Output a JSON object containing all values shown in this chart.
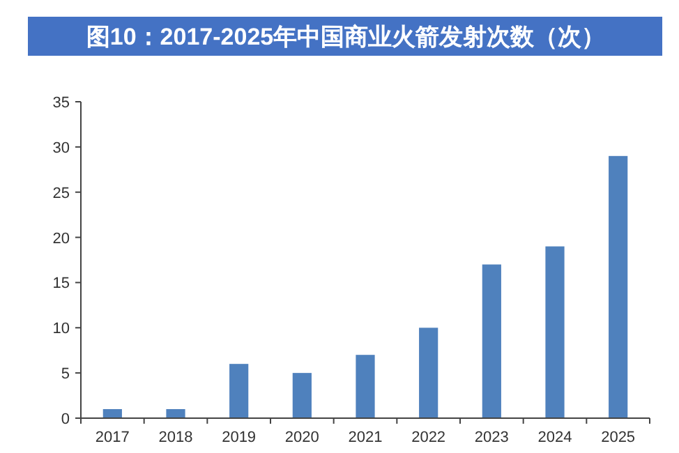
{
  "chart_data": {
    "type": "bar",
    "title": "图10：2017-2025年中国商业火箭发射次数（次）",
    "categories": [
      "2017",
      "2018",
      "2019",
      "2020",
      "2021",
      "2022",
      "2023",
      "2024",
      "2025"
    ],
    "values": [
      1,
      1,
      6,
      5,
      7,
      10,
      17,
      19,
      29
    ],
    "color": "#4f81bd",
    "ylim": [
      0,
      35
    ],
    "yticks": [
      0,
      5,
      10,
      15,
      20,
      25,
      30,
      35
    ],
    "grid": false
  }
}
